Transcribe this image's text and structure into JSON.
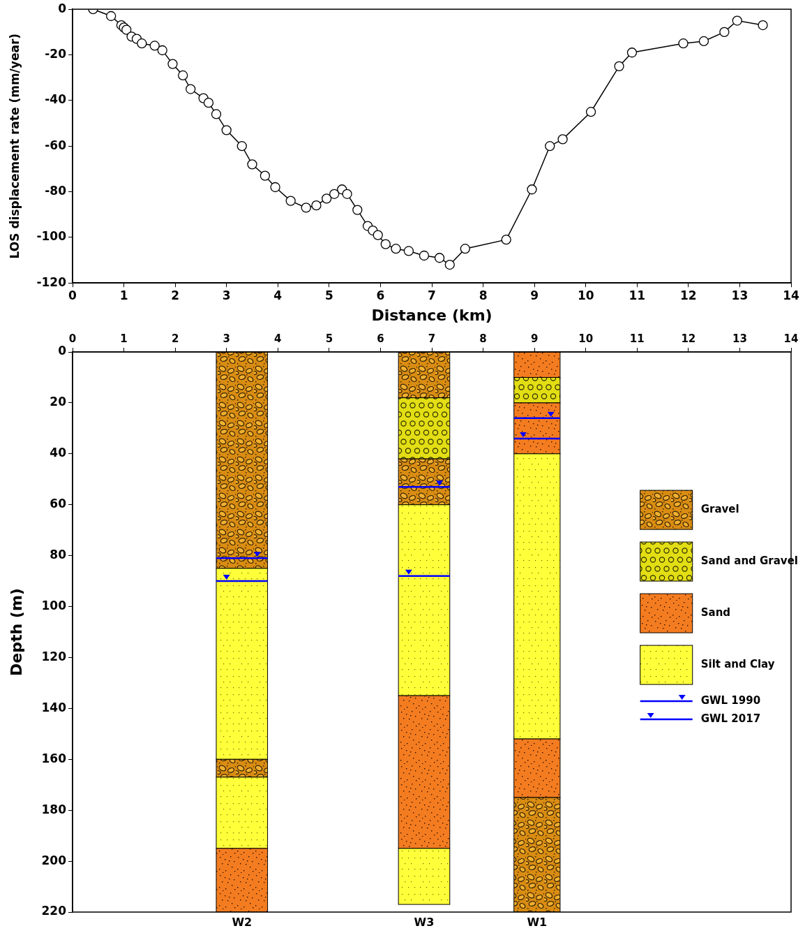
{
  "chart_data": [
    {
      "type": "line",
      "xlabel": "Distance (km)",
      "ylabel": "LOS displacement rate (mm/year)",
      "x": [
        0.4,
        0.75,
        0.95,
        1.0,
        1.05,
        1.15,
        1.25,
        1.35,
        1.6,
        1.75,
        1.95,
        2.15,
        2.3,
        2.55,
        2.65,
        2.8,
        3.0,
        3.3,
        3.5,
        3.75,
        3.95,
        4.25,
        4.55,
        4.75,
        4.95,
        5.1,
        5.25,
        5.35,
        5.55,
        5.75,
        5.85,
        5.95,
        6.1,
        6.3,
        6.55,
        6.85,
        7.15,
        7.35,
        7.65,
        8.45,
        8.95,
        9.3,
        9.55,
        10.1,
        10.65,
        10.9,
        11.9,
        12.3,
        12.7,
        12.95,
        13.45
      ],
      "values": [
        0,
        -3,
        -7,
        -8,
        -9,
        -12,
        -13,
        -15,
        -16,
        -18,
        -24,
        -29,
        -35,
        -39,
        -41,
        -46,
        -53,
        -60,
        -68,
        -73,
        -78,
        -84,
        -87,
        -86,
        -83,
        -81,
        -79,
        -81,
        -88,
        -95,
        -97,
        -99,
        -103,
        -105,
        -106,
        -108,
        -109,
        -112,
        -105,
        -101,
        -79,
        -60,
        -57,
        -45,
        -25,
        -19,
        -15,
        -14,
        -10,
        -5,
        -7
      ],
      "color": "#000000",
      "marker": "circle",
      "xlim": [
        0,
        14
      ],
      "xticks": [
        0,
        1,
        2,
        3,
        4,
        5,
        6,
        7,
        8,
        9,
        10,
        11,
        12,
        13,
        14
      ],
      "ylim": [
        -120,
        0
      ],
      "yticks": [
        -120,
        -100,
        -80,
        -60,
        -40,
        -20,
        0
      ],
      "grid": false
    },
    {
      "type": "borehole",
      "ylabel": "Depth (m)",
      "xlim": [
        0,
        14
      ],
      "xticks": [
        0,
        1,
        2,
        3,
        4,
        5,
        6,
        7,
        8,
        9,
        10,
        11,
        12,
        13,
        14
      ],
      "ylim": [
        0,
        220
      ],
      "yticks": [
        0,
        20,
        40,
        60,
        80,
        100,
        120,
        140,
        160,
        180,
        200,
        220
      ],
      "grid": false,
      "lithologies": [
        {
          "name": "Gravel",
          "color": "#d98c12"
        },
        {
          "name": "Sand and Gravel",
          "color": "#e3de14"
        },
        {
          "name": "Sand",
          "color": "#f47c20"
        },
        {
          "name": "Silt and Clay",
          "color": "#ffff3a"
        }
      ],
      "gwl": [
        {
          "name": "GWL 1990",
          "color": "#0000ff"
        },
        {
          "name": "GWL 2017",
          "color": "#0000ff"
        }
      ],
      "wells": [
        {
          "name": "W2",
          "x": [
            2.8,
            3.8
          ],
          "gwl": [
            81,
            90
          ],
          "layers": [
            {
              "lithology": "Gravel",
              "top": 0,
              "bottom": 85
            },
            {
              "lithology": "Silt and Clay",
              "top": 85,
              "bottom": 160
            },
            {
              "lithology": "Gravel",
              "top": 160,
              "bottom": 167
            },
            {
              "lithology": "Silt and Clay",
              "top": 167,
              "bottom": 195
            },
            {
              "lithology": "Sand",
              "top": 195,
              "bottom": 220
            }
          ]
        },
        {
          "name": "W3",
          "x": [
            6.35,
            7.35
          ],
          "gwl": [
            53,
            88
          ],
          "layers": [
            {
              "lithology": "Gravel",
              "top": 0,
              "bottom": 18
            },
            {
              "lithology": "Sand and Gravel",
              "top": 18,
              "bottom": 42
            },
            {
              "lithology": "Gravel",
              "top": 42,
              "bottom": 60
            },
            {
              "lithology": "Silt and Clay",
              "top": 60,
              "bottom": 135
            },
            {
              "lithology": "Sand",
              "top": 135,
              "bottom": 195
            },
            {
              "lithology": "Silt and Clay",
              "top": 195,
              "bottom": 217
            }
          ]
        },
        {
          "name": "W1",
          "x": [
            8.6,
            9.5
          ],
          "gwl": [
            26,
            34
          ],
          "layers": [
            {
              "lithology": "Sand",
              "top": 0,
              "bottom": 10
            },
            {
              "lithology": "Sand and Gravel",
              "top": 10,
              "bottom": 20
            },
            {
              "lithology": "Sand",
              "top": 20,
              "bottom": 40
            },
            {
              "lithology": "Silt and Clay",
              "top": 40,
              "bottom": 152
            },
            {
              "lithology": "Sand",
              "top": 152,
              "bottom": 175
            },
            {
              "lithology": "Gravel",
              "top": 175,
              "bottom": 220
            }
          ]
        }
      ]
    }
  ]
}
